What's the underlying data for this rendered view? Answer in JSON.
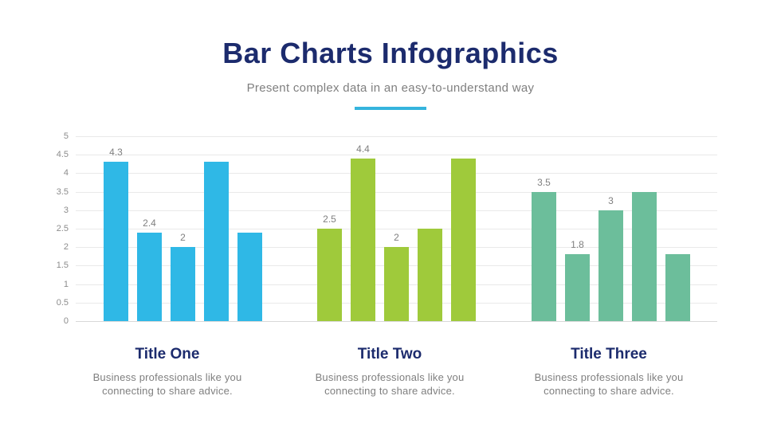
{
  "header": {
    "title": "Bar Charts Infographics",
    "subtitle": "Present complex data in an easy-to-understand way"
  },
  "accent_colors": {
    "title_navy": "#1c2b6d",
    "underline": "#35b4dd",
    "series_one": "#2fb8e6",
    "series_two": "#9fca3b",
    "series_three": "#6cbe9b"
  },
  "chart_data": {
    "type": "bar",
    "title": "",
    "xlabel": "",
    "ylabel": "",
    "ylim": [
      0,
      5
    ],
    "yticks": [
      0,
      0.5,
      1,
      1.5,
      2,
      2.5,
      3,
      3.5,
      4,
      4.5,
      5
    ],
    "grid": true,
    "legend_position": "none",
    "groups": [
      {
        "name": "Title One",
        "color": "#2fb8e6",
        "values": [
          4.3,
          2.4,
          2,
          4.3,
          2.4
        ],
        "labels": [
          "4.3",
          "2.4",
          "2",
          "",
          ""
        ]
      },
      {
        "name": "Title Two",
        "color": "#9fca3b",
        "values": [
          2.5,
          4.4,
          2,
          2.5,
          4.4
        ],
        "labels": [
          "2.5",
          "4.4",
          "2",
          "",
          ""
        ]
      },
      {
        "name": "Title Three",
        "color": "#6cbe9b",
        "values": [
          3.5,
          1.8,
          3,
          3.5,
          1.8
        ],
        "labels": [
          "3.5",
          "1.8",
          "3",
          "",
          ""
        ]
      }
    ]
  },
  "sections": [
    {
      "title": "Title One",
      "description": "Business professionals like you connecting to share advice."
    },
    {
      "title": "Title Two",
      "description": "Business professionals like you connecting to share advice."
    },
    {
      "title": "Title Three",
      "description": "Business professionals like you connecting to share advice."
    }
  ]
}
